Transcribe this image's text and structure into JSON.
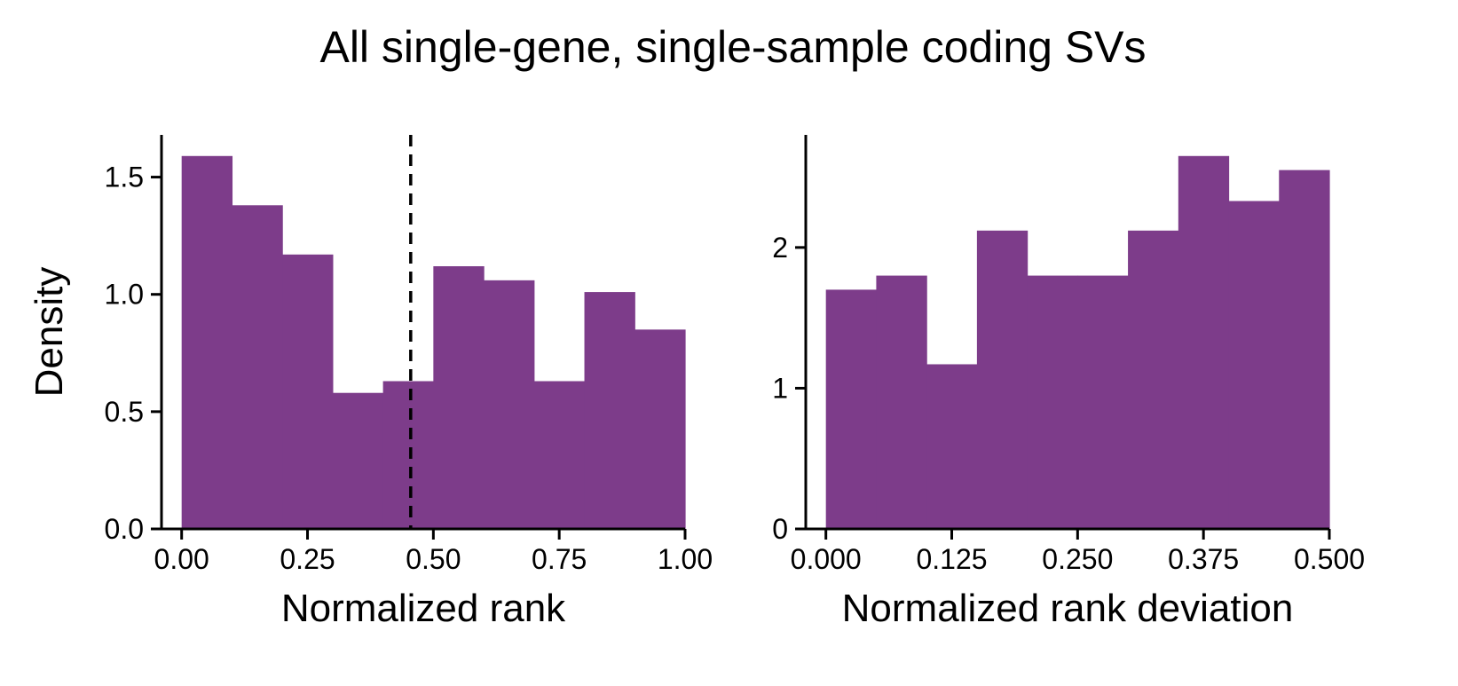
{
  "figure": {
    "suptitle": "All single-gene, single-sample coding SVs"
  },
  "colors": {
    "bar": "#7d3c8a",
    "axis": "#000000"
  },
  "chart_data": [
    {
      "type": "bar",
      "histogram": true,
      "xlabel": "Normalized rank",
      "ylabel": "Density",
      "bin_edges": [
        0.0,
        0.1,
        0.2,
        0.3,
        0.4,
        0.5,
        0.6,
        0.7,
        0.8,
        0.9,
        1.0
      ],
      "values": [
        1.59,
        1.38,
        1.17,
        0.58,
        0.63,
        1.12,
        1.06,
        0.63,
        1.01,
        0.85
      ],
      "xlim": [
        -0.04,
        1.0
      ],
      "ylim": [
        0,
        1.68
      ],
      "xticks": [
        0.0,
        0.25,
        0.5,
        0.75,
        1.0
      ],
      "xtick_labels": [
        "0.00",
        "0.25",
        "0.50",
        "0.75",
        "1.00"
      ],
      "yticks": [
        0.0,
        0.5,
        1.0,
        1.5
      ],
      "ytick_labels": [
        "0.0",
        "0.5",
        "1.0",
        "1.5"
      ],
      "reference_line": {
        "orientation": "vertical",
        "style": "dashed",
        "x": 0.455
      },
      "grid": false
    },
    {
      "type": "bar",
      "histogram": true,
      "xlabel": "Normalized rank deviation",
      "ylabel": "",
      "bin_edges": [
        0.0,
        0.05,
        0.1,
        0.15,
        0.2,
        0.25,
        0.3,
        0.35,
        0.4,
        0.45,
        0.5
      ],
      "values": [
        1.7,
        1.8,
        1.17,
        2.12,
        1.8,
        1.8,
        2.12,
        2.65,
        2.33,
        2.55
      ],
      "xlim": [
        -0.02,
        0.5
      ],
      "ylim": [
        0,
        2.8
      ],
      "xticks": [
        0.0,
        0.125,
        0.25,
        0.375,
        0.5
      ],
      "xtick_labels": [
        "0.000",
        "0.125",
        "0.250",
        "0.375",
        "0.500"
      ],
      "yticks": [
        0,
        1,
        2
      ],
      "ytick_labels": [
        "0",
        "1",
        "2"
      ],
      "grid": false
    }
  ]
}
